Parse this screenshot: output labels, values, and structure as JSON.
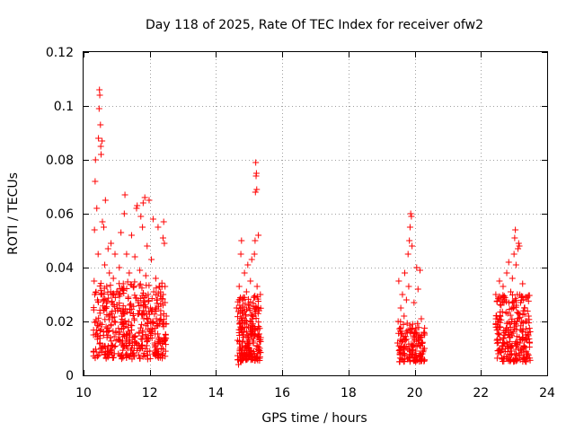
{
  "chart_data": {
    "type": "scatter",
    "title": "Day 118 of 2025, Rate Of TEC Index for receiver ofw2",
    "xlabel": "GPS time / hours",
    "ylabel": "ROTI / TECUs",
    "xlim": [
      10,
      24
    ],
    "ylim": [
      0,
      0.12
    ],
    "x_ticks": [
      10,
      12,
      14,
      16,
      18,
      20,
      22,
      24
    ],
    "x_tick_labels": [
      "10",
      "12",
      "14",
      "16",
      "18",
      "20",
      "22",
      "24"
    ],
    "y_ticks": [
      0,
      0.02,
      0.04,
      0.06,
      0.08,
      0.1,
      0.12
    ],
    "y_tick_labels": [
      "0",
      "0.02",
      "0.04",
      "0.06",
      "0.08",
      "0.1",
      "0.12"
    ],
    "grid": true,
    "marker": "+",
    "color": "#ff0000",
    "series": [
      {
        "name": "ROTI",
        "points": [
          [
            10.3,
            0.015
          ],
          [
            10.32,
            0.035
          ],
          [
            10.33,
            0.054
          ],
          [
            10.35,
            0.072
          ],
          [
            10.36,
            0.08
          ],
          [
            10.38,
            0.02
          ],
          [
            10.4,
            0.062
          ],
          [
            10.42,
            0.028
          ],
          [
            10.44,
            0.045
          ],
          [
            10.45,
            0.088
          ],
          [
            10.47,
            0.099
          ],
          [
            10.48,
            0.106
          ],
          [
            10.49,
            0.104
          ],
          [
            10.5,
            0.012
          ],
          [
            10.51,
            0.093
          ],
          [
            10.52,
            0.085
          ],
          [
            10.53,
            0.082
          ],
          [
            10.54,
            0.03
          ],
          [
            10.56,
            0.087
          ],
          [
            10.57,
            0.057
          ],
          [
            10.59,
            0.01
          ],
          [
            10.61,
            0.055
          ],
          [
            10.62,
            0.024
          ],
          [
            10.64,
            0.041
          ],
          [
            10.66,
            0.065
          ],
          [
            10.68,
            0.018
          ],
          [
            10.7,
            0.033
          ],
          [
            10.72,
            0.009
          ],
          [
            10.74,
            0.047
          ],
          [
            10.76,
            0.022
          ],
          [
            10.78,
            0.038
          ],
          [
            10.8,
            0.014
          ],
          [
            10.83,
            0.049
          ],
          [
            10.85,
            0.027
          ],
          [
            10.88,
            0.011
          ],
          [
            10.9,
            0.036
          ],
          [
            10.93,
            0.02
          ],
          [
            10.95,
            0.045
          ],
          [
            10.98,
            0.013
          ],
          [
            11.0,
            0.031
          ],
          [
            11.03,
            0.024
          ],
          [
            11.05,
            0.008
          ],
          [
            11.08,
            0.04
          ],
          [
            11.1,
            0.016
          ],
          [
            11.13,
            0.053
          ],
          [
            11.15,
            0.022
          ],
          [
            11.18,
            0.012
          ],
          [
            11.2,
            0.034
          ],
          [
            11.23,
            0.06
          ],
          [
            11.25,
            0.067
          ],
          [
            11.28,
            0.019
          ],
          [
            11.3,
            0.045
          ],
          [
            11.33,
            0.01
          ],
          [
            11.35,
            0.029
          ],
          [
            11.38,
            0.038
          ],
          [
            11.4,
            0.015
          ],
          [
            11.43,
            0.026
          ],
          [
            11.45,
            0.052
          ],
          [
            11.48,
            0.008
          ],
          [
            11.5,
            0.033
          ],
          [
            11.53,
            0.021
          ],
          [
            11.55,
            0.044
          ],
          [
            11.58,
            0.012
          ],
          [
            11.6,
            0.062
          ],
          [
            11.62,
            0.063
          ],
          [
            11.65,
            0.027
          ],
          [
            11.68,
            0.016
          ],
          [
            11.7,
            0.039
          ],
          [
            11.73,
            0.059
          ],
          [
            11.75,
            0.011
          ],
          [
            11.78,
            0.055
          ],
          [
            11.8,
            0.064
          ],
          [
            11.83,
            0.023
          ],
          [
            11.85,
            0.066
          ],
          [
            11.88,
            0.037
          ],
          [
            11.9,
            0.014
          ],
          [
            11.92,
            0.048
          ],
          [
            11.95,
            0.03
          ],
          [
            11.98,
            0.065
          ],
          [
            12.0,
            0.009
          ],
          [
            12.02,
            0.025
          ],
          [
            12.05,
            0.043
          ],
          [
            12.08,
            0.017
          ],
          [
            12.1,
            0.058
          ],
          [
            12.12,
            0.031
          ],
          [
            12.15,
            0.012
          ],
          [
            12.18,
            0.036
          ],
          [
            12.2,
            0.021
          ],
          [
            12.23,
            0.028
          ],
          [
            12.25,
            0.055
          ],
          [
            12.28,
            0.014
          ],
          [
            12.3,
            0.033
          ],
          [
            12.33,
            0.024
          ],
          [
            12.35,
            0.01
          ],
          [
            12.38,
            0.019
          ],
          [
            12.4,
            0.051
          ],
          [
            12.42,
            0.057
          ],
          [
            12.44,
            0.049
          ],
          [
            12.46,
            0.027
          ],
          [
            12.48,
            0.015
          ],
          [
            12.5,
            0.022
          ],
          [
            14.62,
            0.025
          ],
          [
            14.65,
            0.013
          ],
          [
            14.68,
            0.004
          ],
          [
            14.7,
            0.033
          ],
          [
            14.72,
            0.019
          ],
          [
            14.75,
            0.045
          ],
          [
            14.77,
            0.05
          ],
          [
            14.79,
            0.01
          ],
          [
            14.82,
            0.028
          ],
          [
            14.84,
            0.016
          ],
          [
            14.86,
            0.038
          ],
          [
            14.88,
            0.007
          ],
          [
            14.9,
            0.022
          ],
          [
            14.92,
            0.031
          ],
          [
            14.94,
            0.012
          ],
          [
            14.96,
            0.041
          ],
          [
            14.98,
            0.018
          ],
          [
            15.0,
            0.026
          ],
          [
            15.02,
            0.009
          ],
          [
            15.04,
            0.035
          ],
          [
            15.06,
            0.015
          ],
          [
            15.08,
            0.043
          ],
          [
            15.1,
            0.021
          ],
          [
            15.12,
            0.012
          ],
          [
            15.14,
            0.029
          ],
          [
            15.16,
            0.045
          ],
          [
            15.18,
            0.05
          ],
          [
            15.19,
            0.068
          ],
          [
            15.2,
            0.079
          ],
          [
            15.21,
            0.074
          ],
          [
            15.22,
            0.075
          ],
          [
            15.23,
            0.069
          ],
          [
            15.24,
            0.033
          ],
          [
            15.26,
            0.017
          ],
          [
            15.28,
            0.052
          ],
          [
            15.3,
            0.024
          ],
          [
            15.32,
            0.01
          ],
          [
            15.34,
            0.03
          ],
          [
            15.35,
            0.014
          ],
          [
            19.48,
            0.012
          ],
          [
            19.5,
            0.02
          ],
          [
            19.52,
            0.035
          ],
          [
            19.55,
            0.008
          ],
          [
            19.58,
            0.025
          ],
          [
            19.6,
            0.015
          ],
          [
            19.63,
            0.03
          ],
          [
            19.65,
            0.01
          ],
          [
            19.68,
            0.022
          ],
          [
            19.7,
            0.038
          ],
          [
            19.72,
            0.013
          ],
          [
            19.75,
            0.028
          ],
          [
            19.78,
            0.006
          ],
          [
            19.8,
            0.045
          ],
          [
            19.82,
            0.033
          ],
          [
            19.84,
            0.05
          ],
          [
            19.86,
            0.055
          ],
          [
            19.88,
            0.06
          ],
          [
            19.9,
            0.059
          ],
          [
            19.92,
            0.048
          ],
          [
            19.94,
            0.019
          ],
          [
            19.96,
            0.011
          ],
          [
            19.98,
            0.027
          ],
          [
            20.0,
            0.016
          ],
          [
            20.03,
            0.009
          ],
          [
            20.06,
            0.04
          ],
          [
            20.1,
            0.032
          ],
          [
            20.13,
            0.013
          ],
          [
            20.16,
            0.039
          ],
          [
            20.2,
            0.021
          ],
          [
            20.25,
            0.01
          ],
          [
            20.3,
            0.015
          ],
          [
            22.45,
            0.03
          ],
          [
            22.48,
            0.013
          ],
          [
            22.5,
            0.021
          ],
          [
            22.53,
            0.008
          ],
          [
            22.56,
            0.035
          ],
          [
            22.58,
            0.018
          ],
          [
            22.61,
            0.026
          ],
          [
            22.64,
            0.011
          ],
          [
            22.67,
            0.033
          ],
          [
            22.7,
            0.007
          ],
          [
            22.72,
            0.028
          ],
          [
            22.75,
            0.016
          ],
          [
            22.78,
            0.038
          ],
          [
            22.81,
            0.023
          ],
          [
            22.84,
            0.042
          ],
          [
            22.87,
            0.014
          ],
          [
            22.9,
            0.031
          ],
          [
            22.92,
            0.009
          ],
          [
            22.95,
            0.036
          ],
          [
            22.98,
            0.025
          ],
          [
            23.0,
            0.045
          ],
          [
            23.02,
            0.051
          ],
          [
            23.04,
            0.054
          ],
          [
            23.06,
            0.041
          ],
          [
            23.08,
            0.017
          ],
          [
            23.1,
            0.03
          ],
          [
            23.12,
            0.047
          ],
          [
            23.14,
            0.049
          ],
          [
            23.16,
            0.048
          ],
          [
            23.18,
            0.012
          ],
          [
            23.2,
            0.027
          ],
          [
            23.23,
            0.02
          ],
          [
            23.26,
            0.034
          ],
          [
            23.29,
            0.01
          ],
          [
            23.32,
            0.024
          ],
          [
            23.35,
            0.015
          ],
          [
            23.38,
            0.029
          ],
          [
            23.41,
            0.008
          ],
          [
            23.44,
            0.022
          ],
          [
            23.47,
            0.012
          ]
        ]
      }
    ],
    "dense_bands": [
      {
        "x_range": [
          10.3,
          12.5
        ],
        "y_range": [
          0.006,
          0.035
        ],
        "count": 420
      },
      {
        "x_range": [
          14.65,
          15.35
        ],
        "y_range": [
          0.005,
          0.03
        ],
        "count": 220
      },
      {
        "x_range": [
          19.5,
          20.3
        ],
        "y_range": [
          0.005,
          0.02
        ],
        "count": 140
      },
      {
        "x_range": [
          22.45,
          23.5
        ],
        "y_range": [
          0.005,
          0.03
        ],
        "count": 230
      }
    ]
  }
}
